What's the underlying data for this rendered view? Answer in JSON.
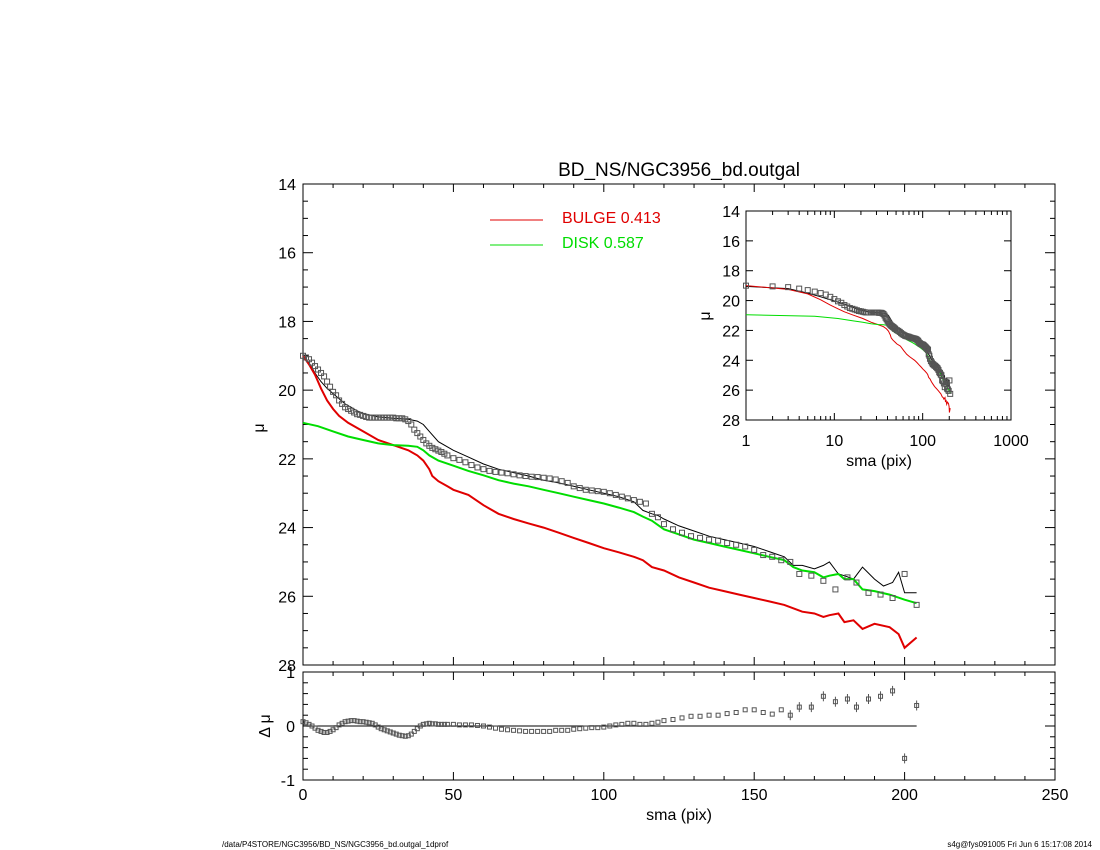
{
  "chart_data": [
    {
      "id": "main",
      "type": "line",
      "title": "BD_NS/NGC3956_bd.outgal",
      "xlabel": "",
      "ylabel": "μ",
      "xlim": [
        0,
        250
      ],
      "ylim": [
        28,
        14
      ],
      "y_inverted": true,
      "x_ticks": [
        0,
        50,
        100,
        150,
        200,
        250
      ],
      "y_ticks": [
        14,
        16,
        18,
        20,
        22,
        24,
        26,
        28
      ],
      "x_tick_labels_shown": false,
      "legend": [
        {
          "text": "BULGE  0.413",
          "color": "#e00000"
        },
        {
          "text": "DISK  0.587",
          "color": "#00dd00"
        }
      ],
      "series": [
        {
          "role": "observed",
          "style": "squares",
          "color": "#555555",
          "x": [
            0,
            1,
            2,
            3,
            4,
            5,
            6,
            7,
            8,
            9,
            10,
            11,
            12,
            13,
            14,
            15,
            16,
            17,
            18,
            19,
            20,
            21,
            22,
            23,
            24,
            25,
            26,
            27,
            28,
            29,
            30,
            31,
            32,
            33,
            34,
            35,
            36,
            37,
            38,
            39,
            40,
            41,
            42,
            43,
            44,
            45,
            46,
            47,
            48,
            50,
            52,
            54,
            56,
            58,
            60,
            62,
            64,
            66,
            68,
            70,
            72,
            74,
            76,
            78,
            80,
            82,
            84,
            86,
            88,
            90,
            92,
            94,
            96,
            98,
            100,
            102,
            104,
            106,
            108,
            110,
            112,
            114,
            116,
            118,
            120,
            123,
            126,
            129,
            132,
            135,
            138,
            141,
            144,
            147,
            150,
            153,
            156,
            159,
            162,
            165,
            169,
            173,
            177,
            181,
            184,
            188,
            192,
            196,
            200,
            204
          ],
          "y": [
            19.0,
            19.05,
            19.1,
            19.2,
            19.3,
            19.4,
            19.5,
            19.6,
            19.75,
            19.9,
            20.05,
            20.15,
            20.3,
            20.4,
            20.5,
            20.55,
            20.6,
            20.65,
            20.7,
            20.72,
            20.75,
            20.78,
            20.8,
            20.8,
            20.8,
            20.8,
            20.8,
            20.8,
            20.8,
            20.8,
            20.8,
            20.82,
            20.82,
            20.82,
            20.85,
            20.9,
            21.0,
            21.15,
            21.25,
            21.35,
            21.45,
            21.55,
            21.62,
            21.68,
            21.72,
            21.76,
            21.8,
            21.85,
            21.9,
            21.98,
            22.03,
            22.1,
            22.18,
            22.25,
            22.3,
            22.35,
            22.38,
            22.4,
            22.42,
            22.45,
            22.48,
            22.5,
            22.52,
            22.53,
            22.55,
            22.57,
            22.6,
            22.65,
            22.7,
            22.8,
            22.85,
            22.9,
            22.92,
            22.94,
            22.96,
            23.0,
            23.05,
            23.1,
            23.15,
            23.2,
            23.25,
            23.3,
            23.6,
            23.7,
            23.9,
            24.05,
            24.15,
            24.25,
            24.3,
            24.35,
            24.38,
            24.45,
            24.5,
            24.55,
            24.65,
            24.8,
            24.85,
            24.95,
            25.0,
            25.35,
            25.4,
            25.55,
            25.8,
            25.45,
            25.6,
            25.9,
            25.95,
            26.05,
            25.35,
            26.25
          ]
        },
        {
          "role": "model-total",
          "style": "line",
          "color": "#000000",
          "x": [
            0,
            2,
            4,
            6,
            8,
            10,
            12,
            14,
            16,
            18,
            20,
            25,
            30,
            35,
            38,
            40,
            42,
            45,
            50,
            55,
            60,
            65,
            70,
            75,
            80,
            85,
            90,
            95,
            100,
            105,
            110,
            113,
            116,
            118,
            120,
            125,
            130,
            135,
            140,
            145,
            150,
            155,
            160,
            163,
            166,
            170,
            173,
            175,
            178,
            180,
            183,
            186,
            190,
            193,
            196,
            198,
            200,
            204
          ],
          "y": [
            19.05,
            19.2,
            19.5,
            19.75,
            19.95,
            20.1,
            20.25,
            20.4,
            20.5,
            20.6,
            20.68,
            20.78,
            20.82,
            20.85,
            20.9,
            21.0,
            21.2,
            21.5,
            21.75,
            21.95,
            22.15,
            22.3,
            22.4,
            22.5,
            22.62,
            22.7,
            22.8,
            22.9,
            23.0,
            23.1,
            23.25,
            23.5,
            23.6,
            23.65,
            23.75,
            23.95,
            24.1,
            24.25,
            24.35,
            24.45,
            24.55,
            24.7,
            24.85,
            25.1,
            25.1,
            25.2,
            25.1,
            25.0,
            25.35,
            25.4,
            25.5,
            25.15,
            25.5,
            25.7,
            25.6,
            25.3,
            25.9,
            25.9
          ]
        },
        {
          "role": "bulge",
          "style": "line",
          "color": "#e00000",
          "x": [
            0,
            2,
            4,
            6,
            8,
            10,
            12,
            15,
            20,
            25,
            30,
            35,
            38,
            40,
            42,
            43,
            45,
            48,
            50,
            55,
            60,
            65,
            70,
            75,
            80,
            85,
            90,
            95,
            100,
            105,
            110,
            113,
            116,
            120,
            125,
            130,
            135,
            140,
            145,
            150,
            155,
            160,
            163,
            166,
            170,
            173,
            175,
            178,
            180,
            183,
            186,
            190,
            195,
            198,
            200,
            204
          ],
          "y": [
            19.0,
            19.25,
            19.55,
            19.95,
            20.3,
            20.55,
            20.75,
            20.95,
            21.2,
            21.45,
            21.6,
            21.75,
            21.9,
            22.05,
            22.3,
            22.5,
            22.65,
            22.8,
            22.9,
            23.05,
            23.35,
            23.6,
            23.75,
            23.88,
            24.0,
            24.15,
            24.3,
            24.45,
            24.6,
            24.72,
            24.85,
            24.95,
            25.15,
            25.25,
            25.45,
            25.6,
            25.75,
            25.85,
            25.95,
            26.05,
            26.15,
            26.25,
            26.35,
            26.45,
            26.5,
            26.6,
            26.55,
            26.5,
            26.75,
            26.7,
            26.95,
            26.8,
            26.9,
            27.1,
            27.5,
            27.2
          ]
        },
        {
          "role": "disk",
          "style": "line",
          "color": "#00dd00",
          "x": [
            0,
            5,
            10,
            15,
            20,
            25,
            30,
            35,
            38,
            40,
            42,
            45,
            50,
            55,
            60,
            65,
            70,
            75,
            80,
            85,
            90,
            95,
            100,
            105,
            110,
            113,
            116,
            120,
            125,
            130,
            135,
            140,
            145,
            150,
            155,
            160,
            163,
            166,
            170,
            173,
            175,
            178,
            180,
            183,
            186,
            190,
            195,
            200,
            204
          ],
          "y": [
            20.95,
            21.05,
            21.2,
            21.35,
            21.45,
            21.55,
            21.6,
            21.62,
            21.65,
            21.75,
            21.9,
            22.05,
            22.2,
            22.35,
            22.48,
            22.62,
            22.72,
            22.8,
            22.9,
            23.0,
            23.1,
            23.2,
            23.3,
            23.42,
            23.55,
            23.68,
            23.8,
            24.05,
            24.2,
            24.35,
            24.45,
            24.55,
            24.65,
            24.75,
            24.85,
            24.95,
            25.15,
            25.25,
            25.3,
            25.45,
            25.4,
            25.35,
            25.5,
            25.5,
            25.8,
            25.85,
            25.95,
            26.1,
            26.2
          ]
        }
      ]
    },
    {
      "id": "residual",
      "type": "scatter",
      "xlabel": "sma (pix)",
      "ylabel": "Δ μ",
      "xlim": [
        0,
        250
      ],
      "ylim": [
        -1,
        1
      ],
      "x_ticks": [
        0,
        50,
        100,
        150,
        200,
        250
      ],
      "y_ticks": [
        -1,
        0,
        1
      ],
      "zero_line": true,
      "series": [
        {
          "role": "residual",
          "style": "squares",
          "color": "#555555",
          "x": [
            0,
            1,
            2,
            3,
            4,
            5,
            6,
            7,
            8,
            9,
            10,
            11,
            12,
            13,
            14,
            15,
            16,
            17,
            18,
            19,
            20,
            21,
            22,
            23,
            24,
            25,
            26,
            27,
            28,
            29,
            30,
            31,
            32,
            33,
            34,
            35,
            36,
            37,
            38,
            39,
            40,
            41,
            42,
            43,
            44,
            45,
            46,
            47,
            48,
            50,
            52,
            54,
            56,
            58,
            60,
            62,
            64,
            66,
            68,
            70,
            72,
            74,
            76,
            78,
            80,
            82,
            84,
            86,
            88,
            90,
            92,
            94,
            96,
            98,
            100,
            102,
            104,
            106,
            108,
            110,
            112,
            114,
            116,
            118,
            120,
            123,
            126,
            129,
            132,
            135,
            138,
            141,
            144,
            147,
            150,
            153,
            156,
            159,
            162,
            165,
            169,
            173,
            177,
            181,
            184,
            188,
            192,
            196,
            200,
            204
          ],
          "y": [
            0.08,
            0.06,
            0.03,
            0.0,
            -0.04,
            -0.08,
            -0.1,
            -0.12,
            -0.12,
            -0.1,
            -0.07,
            -0.03,
            0.02,
            0.05,
            0.08,
            0.09,
            0.1,
            0.1,
            0.09,
            0.08,
            0.08,
            0.07,
            0.06,
            0.05,
            0.02,
            -0.02,
            -0.05,
            -0.07,
            -0.09,
            -0.11,
            -0.13,
            -0.15,
            -0.17,
            -0.18,
            -0.19,
            -0.18,
            -0.15,
            -0.1,
            -0.05,
            0.0,
            0.03,
            0.04,
            0.05,
            0.04,
            0.04,
            0.03,
            0.03,
            0.03,
            0.03,
            0.03,
            0.02,
            0.02,
            0.02,
            0.01,
            0.0,
            -0.02,
            -0.04,
            -0.06,
            -0.07,
            -0.08,
            -0.09,
            -0.1,
            -0.1,
            -0.1,
            -0.1,
            -0.1,
            -0.08,
            -0.08,
            -0.08,
            -0.06,
            -0.05,
            -0.04,
            -0.03,
            -0.03,
            -0.02,
            0.0,
            0.02,
            0.03,
            0.05,
            0.05,
            0.03,
            0.03,
            0.05,
            0.07,
            0.1,
            0.12,
            0.15,
            0.18,
            0.18,
            0.2,
            0.2,
            0.23,
            0.25,
            0.3,
            0.3,
            0.25,
            0.22,
            0.3,
            0.2,
            0.35,
            0.35,
            0.55,
            0.45,
            0.5,
            0.35,
            0.5,
            0.55,
            0.65,
            -0.6,
            0.38
          ]
        }
      ]
    },
    {
      "id": "inset",
      "type": "line",
      "xlabel": "sma (pix)",
      "ylabel": "μ",
      "x_scale": "log",
      "xlim": [
        1,
        1000
      ],
      "ylim": [
        28,
        14
      ],
      "y_inverted": true,
      "x_ticks": [
        1,
        10,
        100,
        1000
      ],
      "y_ticks": [
        14,
        16,
        18,
        20,
        22,
        24,
        26,
        28
      ]
    }
  ],
  "footer": {
    "left": "/data/P4STORE/NGC3956/BD_NS/NGC3956_bd.outgal_1dprof",
    "right": "s4g@fys091005  Fri Jun  6 15:17:08 2014"
  }
}
